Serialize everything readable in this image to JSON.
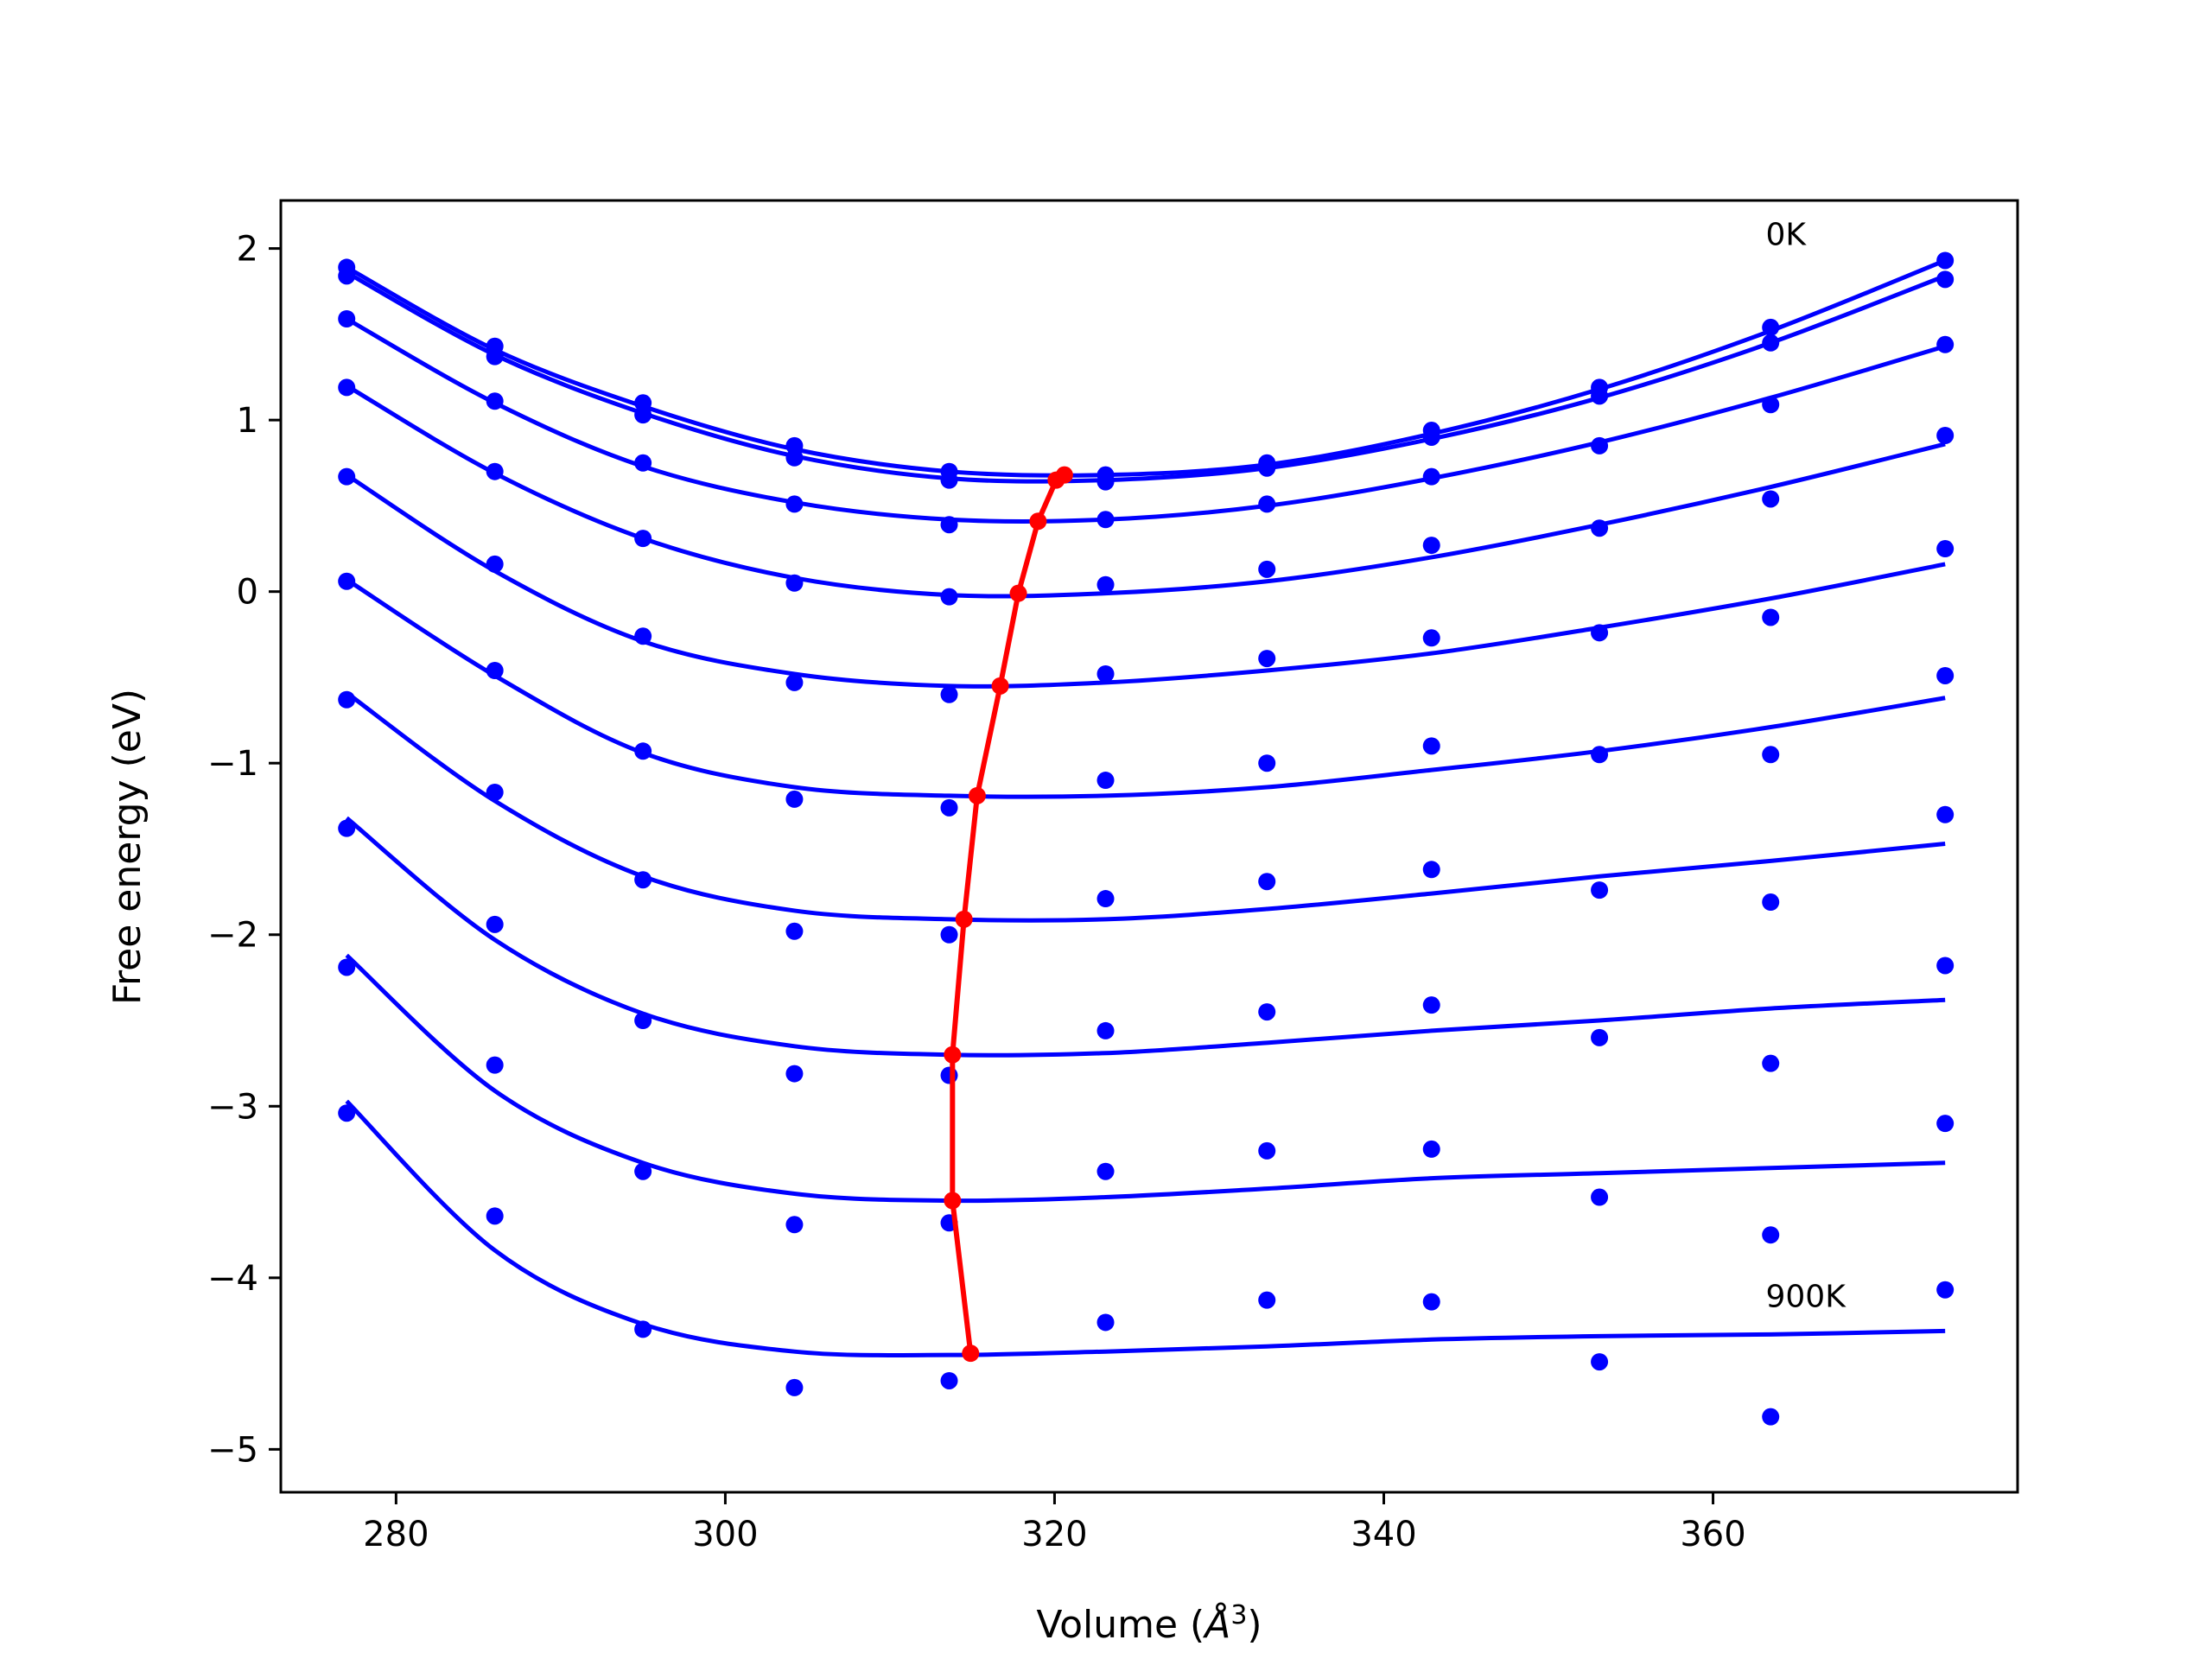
{
  "chart_data": {
    "type": "scatter",
    "title": "",
    "xlabel": "Volume (",
    "xlabel_unit": "Å",
    "xlabel_sup": "3",
    "xlabel_close": ")",
    "ylabel": "Free energy (eV)",
    "xlim": [
      273,
      378.5
    ],
    "ylim": [
      -5.25,
      2.28
    ],
    "xticks": [
      280,
      300,
      320,
      340,
      360
    ],
    "xtick_labels": [
      "280",
      "300",
      "320",
      "340",
      "360"
    ],
    "yticks": [
      -5,
      -4,
      -3,
      -2,
      -1,
      0,
      1,
      2
    ],
    "ytick_labels": [
      "−5",
      "−4",
      "−3",
      "−2",
      "−1",
      "0",
      "1",
      "2"
    ],
    "grid": false,
    "annotations": [
      {
        "text": "0K",
        "x": 363.2,
        "y": 2.02
      },
      {
        "text": "900K",
        "x": 363.2,
        "y": -4.17
      }
    ],
    "x": [
      277.0,
      286.0,
      295.0,
      304.2,
      313.6,
      323.1,
      332.9,
      342.9,
      353.1,
      363.5,
      374.1
    ],
    "series": [
      {
        "points": [
          1.89,
          1.43,
          1.1,
          0.85,
          0.7,
          0.68,
          0.75,
          0.94,
          1.19,
          1.54,
          1.93
        ],
        "fit": [
          1.89,
          1.41,
          1.08,
          0.83,
          0.7,
          0.68,
          0.74,
          0.92,
          1.18,
          1.52,
          1.93
        ]
      },
      {
        "points": [
          1.84,
          1.37,
          1.03,
          0.78,
          0.65,
          0.64,
          0.72,
          0.9,
          1.14,
          1.45,
          1.82
        ],
        "fit": [
          1.86,
          1.38,
          1.04,
          0.79,
          0.66,
          0.65,
          0.72,
          0.89,
          1.13,
          1.45,
          1.84
        ]
      },
      {
        "points": [
          1.59,
          1.11,
          0.75,
          0.51,
          0.39,
          0.42,
          0.51,
          0.67,
          0.85,
          1.09,
          1.44
        ],
        "fit": [
          1.59,
          1.1,
          0.73,
          0.52,
          0.42,
          0.42,
          0.5,
          0.66,
          0.87,
          1.13,
          1.43
        ]
      },
      {
        "points": [
          1.19,
          0.7,
          0.31,
          0.05,
          -0.03,
          0.04,
          0.13,
          0.27,
          0.37,
          0.54,
          0.91
        ],
        "fit": [
          1.2,
          0.69,
          0.31,
          0.08,
          -0.02,
          -0.01,
          0.06,
          0.2,
          0.39,
          0.61,
          0.86
        ]
      },
      {
        "points": [
          0.67,
          0.16,
          -0.26,
          -0.53,
          -0.6,
          -0.48,
          -0.39,
          -0.27,
          -0.24,
          -0.15,
          0.25
        ],
        "fit": [
          0.68,
          0.12,
          -0.29,
          -0.48,
          -0.55,
          -0.53,
          -0.46,
          -0.36,
          -0.21,
          -0.04,
          0.16
        ]
      },
      {
        "points": [
          0.06,
          -0.46,
          -0.93,
          -1.21,
          -1.26,
          -1.1,
          -1.0,
          -0.9,
          -0.95,
          -0.95,
          -0.49
        ],
        "fit": [
          0.07,
          -0.49,
          -0.94,
          -1.14,
          -1.19,
          -1.19,
          -1.14,
          -1.04,
          -0.93,
          -0.79,
          -0.62
        ]
      },
      {
        "points": [
          -0.63,
          -1.17,
          -1.68,
          -1.98,
          -2.0,
          -1.79,
          -1.69,
          -1.62,
          -1.74,
          -1.81,
          -1.3
        ],
        "fit": [
          -0.59,
          -1.22,
          -1.66,
          -1.86,
          -1.91,
          -1.91,
          -1.85,
          -1.76,
          -1.66,
          -1.57,
          -1.47
        ]
      },
      {
        "points": [
          -1.38,
          -1.94,
          -2.5,
          -2.81,
          -2.82,
          -2.56,
          -2.45,
          -2.41,
          -2.6,
          -2.75,
          -2.18
        ],
        "fit": [
          -1.32,
          -2.03,
          -2.46,
          -2.65,
          -2.7,
          -2.69,
          -2.63,
          -2.56,
          -2.5,
          -2.43,
          -2.38
        ]
      },
      {
        "points": [
          -2.19,
          -2.76,
          -3.38,
          -3.69,
          -3.68,
          -3.38,
          -3.26,
          -3.25,
          -3.53,
          -3.75,
          -3.1
        ],
        "fit": [
          -2.12,
          -2.91,
          -3.33,
          -3.51,
          -3.55,
          -3.53,
          -3.48,
          -3.42,
          -3.39,
          -3.36,
          -3.33
        ]
      },
      {
        "points": [
          -3.04,
          -3.64,
          -4.3,
          -4.64,
          -4.6,
          -4.26,
          -4.13,
          -4.14,
          -4.49,
          -4.81,
          -4.07
        ],
        "fit": [
          -2.97,
          -3.84,
          -4.27,
          -4.43,
          -4.45,
          -4.43,
          -4.4,
          -4.36,
          -4.34,
          -4.33,
          -4.31
        ]
      }
    ],
    "minima": {
      "x": [
        320.6,
        320.1,
        319.0,
        317.8,
        316.7,
        315.3,
        314.5,
        313.8,
        313.8,
        314.9
      ],
      "y": [
        0.68,
        0.65,
        0.41,
        -0.01,
        -0.55,
        -1.19,
        -1.91,
        -2.7,
        -3.55,
        -4.44
      ]
    },
    "colors": {
      "series": "#0000ff",
      "minima": "#ff0000",
      "axes": "#000000"
    }
  }
}
